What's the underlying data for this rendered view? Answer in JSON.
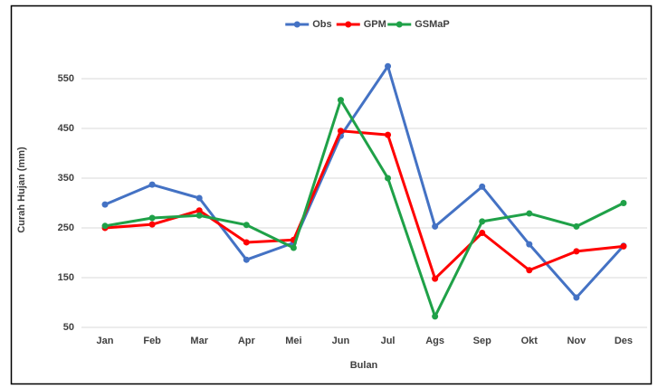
{
  "chart_data": {
    "type": "line",
    "categories": [
      "Jan",
      "Feb",
      "Mar",
      "Apr",
      "Mei",
      "Jun",
      "Jul",
      "Ags",
      "Sep",
      "Okt",
      "Nov",
      "Des"
    ],
    "series": [
      {
        "name": "Obs",
        "color": "#4472c4",
        "values": [
          297,
          337,
          310,
          186,
          220,
          435,
          575,
          253,
          333,
          217,
          110,
          214
        ]
      },
      {
        "name": "GPM",
        "color": "#ff0000",
        "values": [
          250,
          257,
          285,
          221,
          226,
          445,
          437,
          148,
          240,
          165,
          203,
          213
        ]
      },
      {
        "name": "GSMaP",
        "color": "#1fa148",
        "values": [
          254,
          270,
          275,
          256,
          210,
          507,
          350,
          72,
          263,
          279,
          253,
          300
        ]
      }
    ],
    "y_label": "Curah Hujan (mm)",
    "x_label": "Bulan",
    "ylim": [
      50,
      600
    ],
    "yticks": [
      50,
      150,
      250,
      350,
      450,
      550
    ],
    "grid": true,
    "legend": "top"
  }
}
